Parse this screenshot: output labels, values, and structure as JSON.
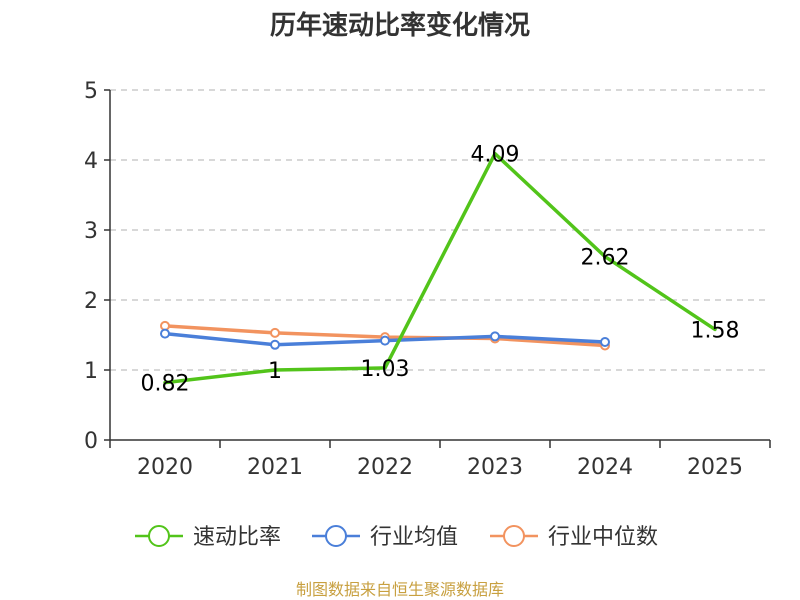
{
  "chart_data": {
    "type": "line",
    "title": "历年速动比率变化情况",
    "xlabel": "",
    "ylabel": "",
    "categories": [
      "2020",
      "2021",
      "2022",
      "2023",
      "2024",
      "2025"
    ],
    "ylim": [
      0,
      5
    ],
    "yticks": [
      0,
      1,
      2,
      3,
      4,
      5
    ],
    "grid": true,
    "legend_position": "bottom",
    "series": [
      {
        "name": "速动比率",
        "color": "#52c41a",
        "values": [
          0.82,
          1,
          1.03,
          4.09,
          2.62,
          1.58
        ],
        "labels": [
          "0.82",
          "1",
          "1.03",
          "4.09",
          "2.62",
          "1.58"
        ],
        "show_markers": false
      },
      {
        "name": "行业均值",
        "color": "#4a7fd9",
        "values": [
          1.52,
          1.36,
          1.42,
          1.48,
          1.4,
          null
        ],
        "show_markers": true
      },
      {
        "name": "行业中位数",
        "color": "#f2935f",
        "values": [
          1.63,
          1.53,
          1.47,
          1.45,
          1.35,
          null
        ],
        "show_markers": true
      }
    ]
  },
  "footer": {
    "source": "制图数据来自恒生聚源数据库"
  }
}
